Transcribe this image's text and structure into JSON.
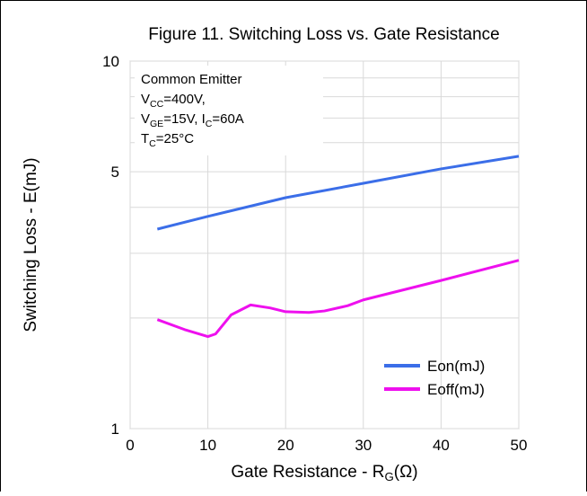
{
  "chart_data": {
    "type": "line",
    "title": "Figure 11. Switching Loss vs. Gate Resistance",
    "x_label": [
      {
        "t": "Gate Resistance - R"
      },
      {
        "sub": "G"
      },
      {
        "t": "(Ω)"
      }
    ],
    "y_label": "Switching Loss - E(mJ)",
    "annotation": [
      [
        {
          "t": "Common Emitter"
        }
      ],
      [
        {
          "t": "V"
        },
        {
          "sub": "CC"
        },
        {
          "t": "=400V,"
        }
      ],
      [
        {
          "t": "V"
        },
        {
          "sub": "GE"
        },
        {
          "t": "=15V, I"
        },
        {
          "sub": "C"
        },
        {
          "t": "=60A"
        }
      ],
      [
        {
          "t": "T"
        },
        {
          "sub": "C"
        },
        {
          "t": "=25°C"
        }
      ]
    ],
    "xlim": [
      0,
      50
    ],
    "xticks": [
      0,
      10,
      20,
      30,
      40,
      50
    ],
    "ylim": [
      1,
      10
    ],
    "yticks": [
      1,
      5,
      10
    ],
    "y_minor_grid": [
      2,
      3,
      4,
      6,
      7,
      8,
      9
    ],
    "log_y": true,
    "grid": true,
    "legend": "lower right",
    "series": [
      {
        "name": "Eon(mJ)",
        "color": "#3b6ee8",
        "x": [
          3.5,
          10,
          20,
          30,
          40,
          50
        ],
        "values": [
          3.49,
          3.78,
          4.25,
          4.65,
          5.09,
          5.51
        ]
      },
      {
        "name": "Eoff(mJ)",
        "color": "#ee10ee",
        "x": [
          3.5,
          7,
          10,
          11,
          13,
          15.5,
          18,
          20,
          23,
          25,
          28,
          30,
          40,
          50
        ],
        "values": [
          1.98,
          1.86,
          1.78,
          1.81,
          2.04,
          2.17,
          2.13,
          2.08,
          2.07,
          2.09,
          2.16,
          2.24,
          2.53,
          2.87
        ]
      }
    ]
  }
}
